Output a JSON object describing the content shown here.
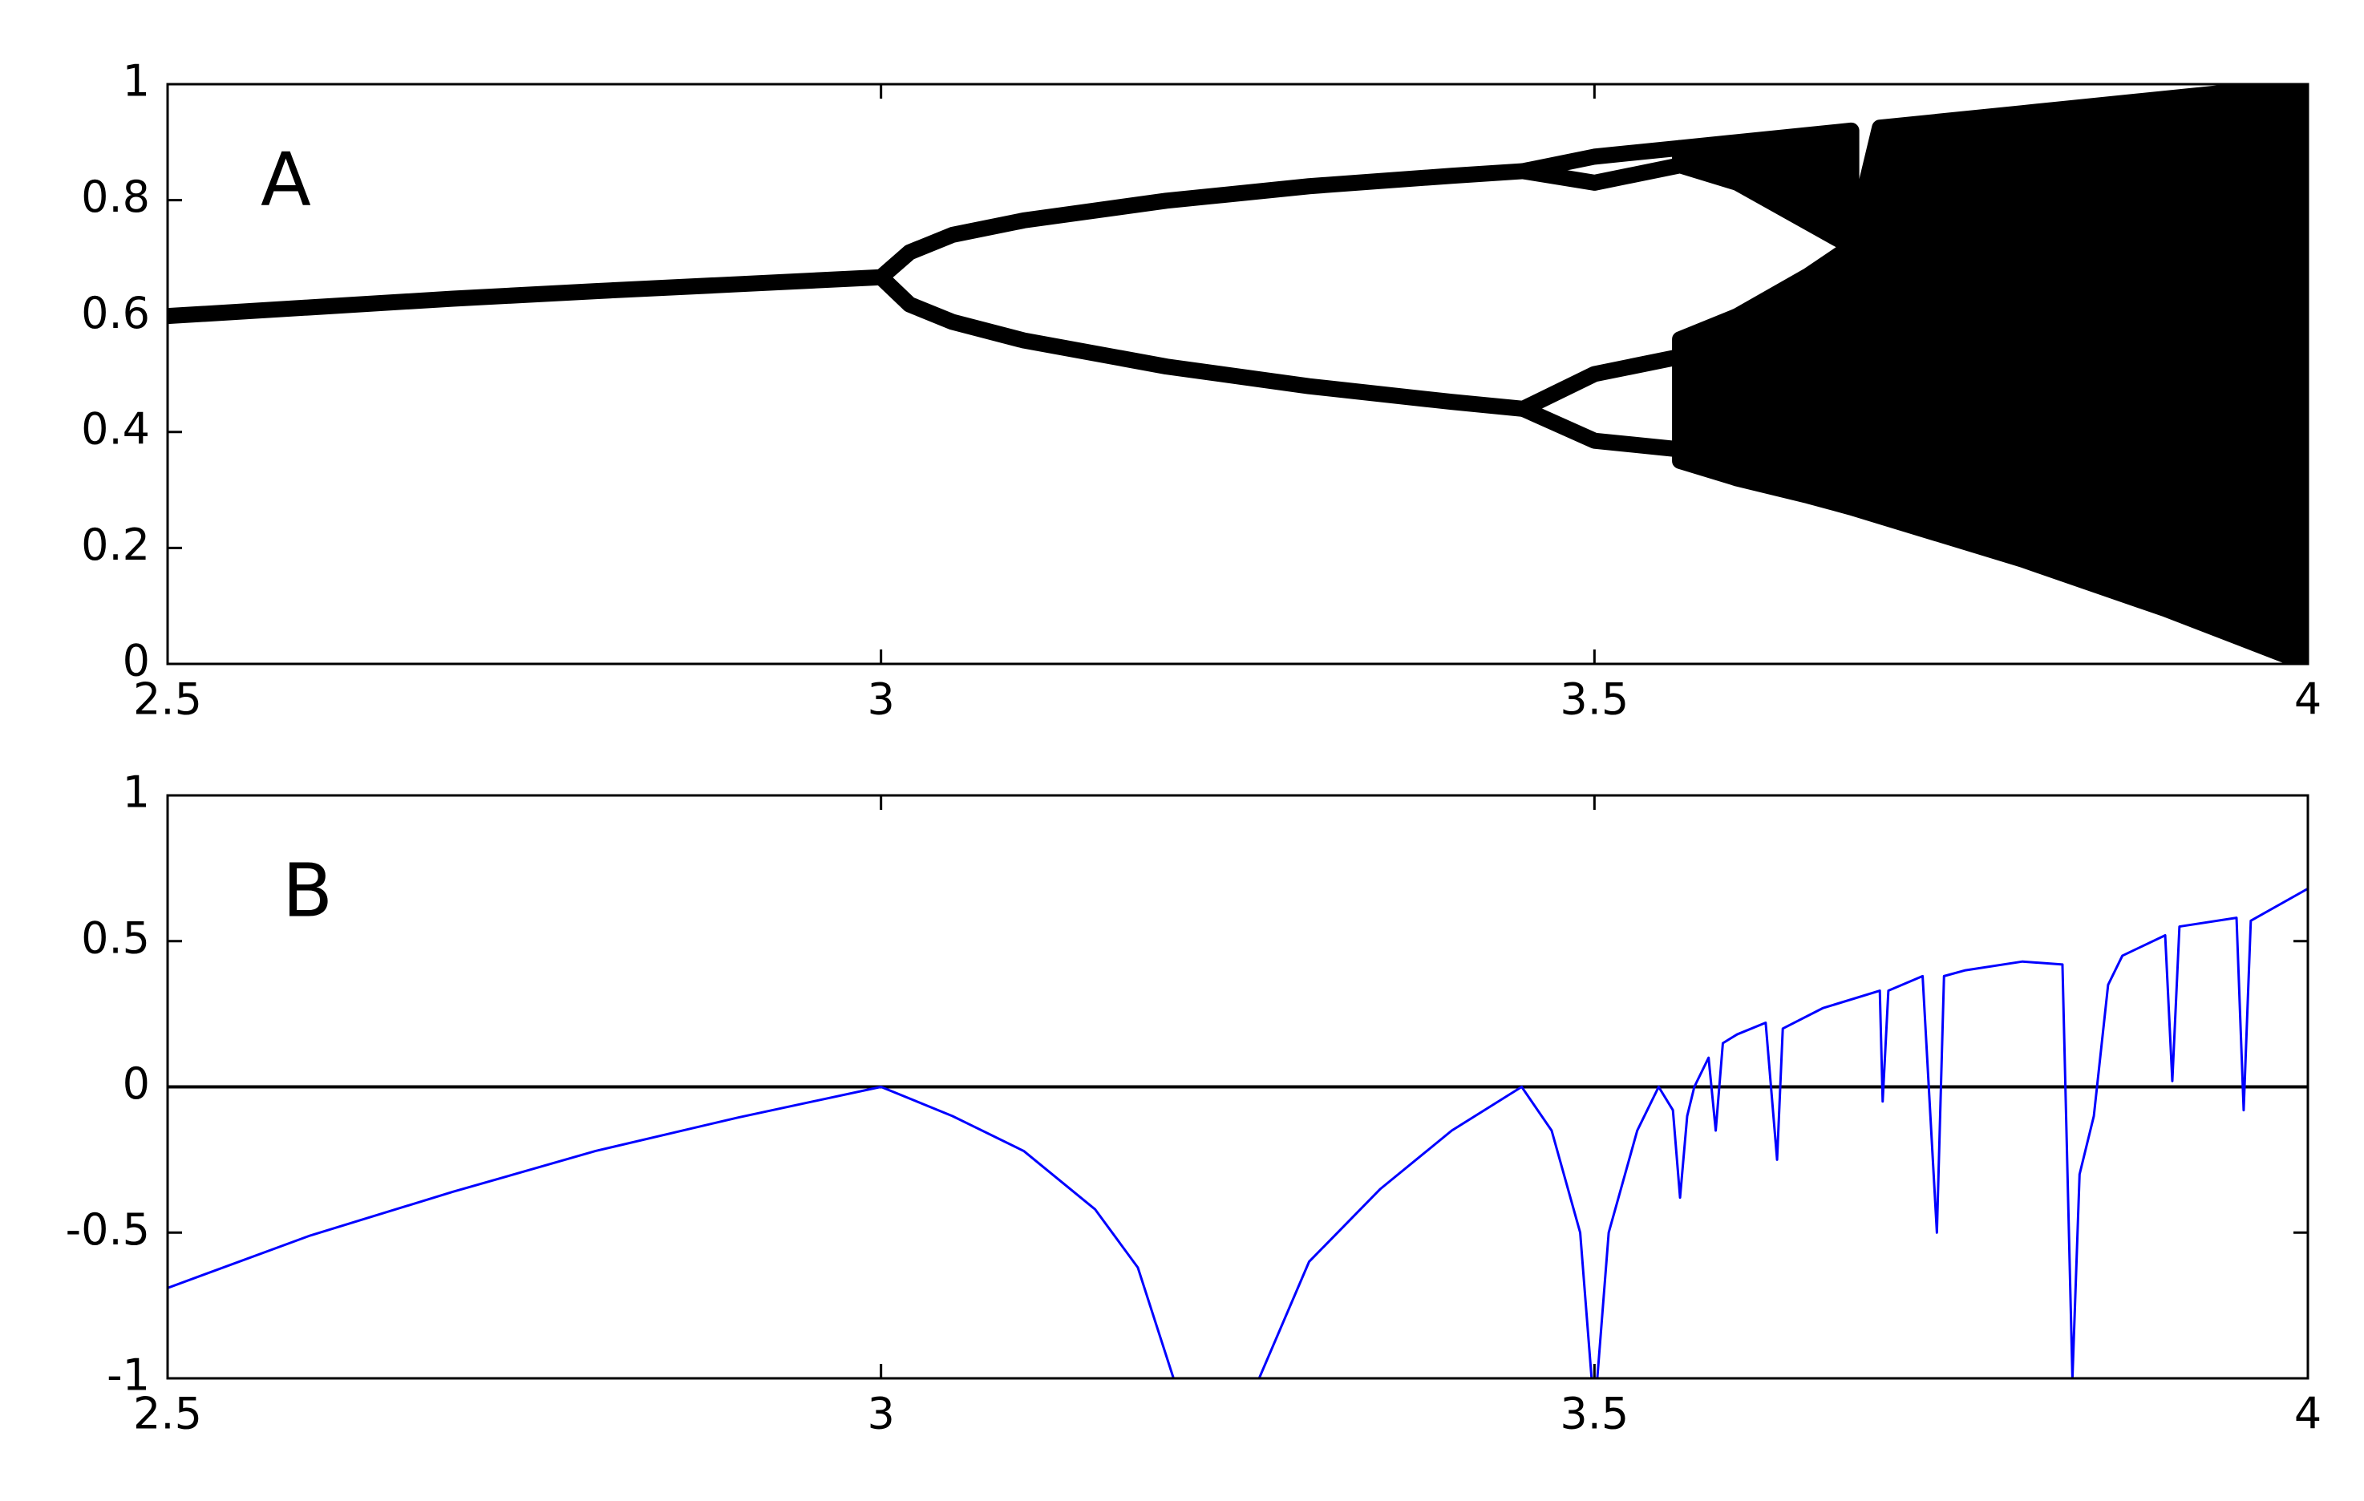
{
  "chart_data": [
    {
      "type": "line",
      "annotation": "A",
      "xlim": [
        2.5,
        4
      ],
      "xticks": [
        2.5,
        3,
        3.5,
        4
      ],
      "ylim": [
        0,
        1
      ],
      "yticks": [
        0,
        0.2,
        0.4,
        0.6,
        0.8,
        1
      ],
      "series": [
        {
          "color": "#000000",
          "x": [
            2.5,
            2.6,
            2.7,
            2.8,
            2.9,
            3.0
          ],
          "values": [
            0.6,
            0.615,
            0.63,
            0.643,
            0.655,
            0.667
          ]
        },
        {
          "color": "#000000",
          "x": [
            3.0,
            3.02,
            3.05,
            3.1,
            3.2,
            3.3,
            3.4,
            3.45
          ],
          "values": [
            0.667,
            0.71,
            0.74,
            0.765,
            0.799,
            0.824,
            0.842,
            0.85
          ]
        },
        {
          "color": "#000000",
          "x": [
            3.0,
            3.02,
            3.05,
            3.1,
            3.2,
            3.3,
            3.4,
            3.45
          ],
          "values": [
            0.667,
            0.62,
            0.59,
            0.558,
            0.513,
            0.479,
            0.452,
            0.44
          ]
        },
        {
          "color": "#000000",
          "x": [
            3.45,
            3.5,
            3.56
          ],
          "values": [
            0.85,
            0.875,
            0.89
          ]
        },
        {
          "color": "#000000",
          "x": [
            3.45,
            3.5,
            3.56
          ],
          "values": [
            0.85,
            0.83,
            0.86
          ]
        },
        {
          "color": "#000000",
          "x": [
            3.45,
            3.5,
            3.56
          ],
          "values": [
            0.44,
            0.5,
            0.53
          ]
        },
        {
          "color": "#000000",
          "x": [
            3.45,
            3.5,
            3.56
          ],
          "values": [
            0.44,
            0.385,
            0.37
          ]
        },
        {
          "color": "#000000",
          "x": [
            3.56,
            3.6,
            3.68
          ],
          "values": [
            0.89,
            0.9,
            0.92
          ],
          "low": [
            0.86,
            0.83,
            0.72
          ]
        },
        {
          "color": "#000000",
          "x": [
            3.56,
            3.6,
            3.65,
            3.68,
            3.7,
            3.8,
            3.9,
            4.0
          ],
          "values": [
            0.56,
            0.6,
            0.67,
            0.72,
            0.925,
            0.95,
            0.975,
            1.0
          ],
          "low": [
            0.35,
            0.32,
            0.29,
            0.27,
            0.255,
            0.18,
            0.095,
            0.0
          ]
        }
      ]
    },
    {
      "type": "line",
      "annotation": "B",
      "xlim": [
        2.5,
        4
      ],
      "xticks": [
        2.5,
        3,
        3.5,
        4
      ],
      "ylim": [
        -1,
        1
      ],
      "yticks": [
        -1,
        -0.5,
        0,
        0.5,
        1
      ],
      "hline": 0,
      "series": [
        {
          "color": "#0000ff",
          "x": [
            2.5,
            2.6,
            2.7,
            2.8,
            2.9,
            3.0,
            3.05,
            3.1,
            3.15,
            3.18,
            3.205,
            3.265,
            3.3,
            3.35,
            3.4,
            3.449,
            3.47,
            3.49,
            3.498,
            3.502,
            3.51,
            3.53,
            3.545,
            3.555,
            3.56,
            3.565,
            3.57,
            3.58,
            3.585,
            3.59,
            3.6,
            3.62,
            3.628,
            3.632,
            3.66,
            3.7,
            3.702,
            3.706,
            3.73,
            3.74,
            3.745,
            3.76,
            3.8,
            3.828,
            3.835,
            3.84,
            3.85,
            3.86,
            3.87,
            3.9,
            3.905,
            3.91,
            3.95,
            3.955,
            3.96,
            4.0
          ],
          "values": [
            -0.69,
            -0.51,
            -0.36,
            -0.22,
            -0.105,
            0.0,
            -0.1,
            -0.22,
            -0.42,
            -0.62,
            -1,
            -1,
            -0.6,
            -0.35,
            -0.15,
            0.0,
            -0.15,
            -0.5,
            -1,
            -1,
            -0.5,
            -0.15,
            0.0,
            -0.08,
            -0.38,
            -0.1,
            0.0,
            0.1,
            -0.15,
            0.15,
            0.18,
            0.22,
            -0.25,
            0.2,
            0.27,
            0.33,
            -0.05,
            0.33,
            0.38,
            -0.5,
            0.38,
            0.4,
            0.43,
            0.42,
            -1,
            -0.3,
            -0.1,
            0.35,
            0.45,
            0.52,
            0.02,
            0.55,
            0.58,
            -0.08,
            0.57,
            0.68
          ]
        }
      ]
    }
  ]
}
